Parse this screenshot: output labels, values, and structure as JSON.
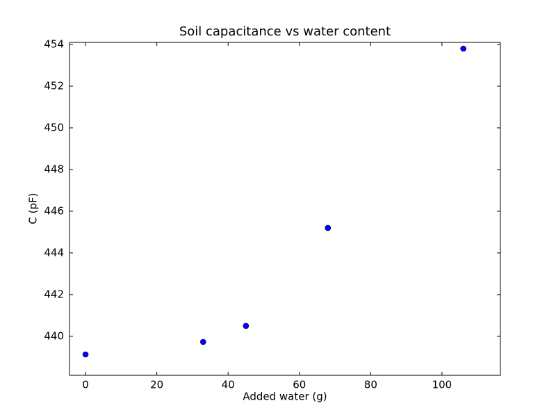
{
  "chart_data": {
    "type": "scatter",
    "title": "Soil capacitance vs water content",
    "xlabel": "Added water (g)",
    "ylabel": "C (pF)",
    "series": [
      {
        "color": "#0000ff",
        "x": [
          0,
          33,
          45,
          68,
          106
        ],
        "values": [
          439.13,
          439.73,
          440.5,
          445.2,
          453.8
        ]
      }
    ],
    "xlim": [
      -4.5,
      116.4
    ],
    "ylim": [
      438.13,
      454.1
    ],
    "xticks": [
      0,
      20,
      40,
      60,
      80,
      100
    ],
    "yticks": [
      440,
      442,
      444,
      446,
      448,
      450,
      452,
      454
    ]
  }
}
